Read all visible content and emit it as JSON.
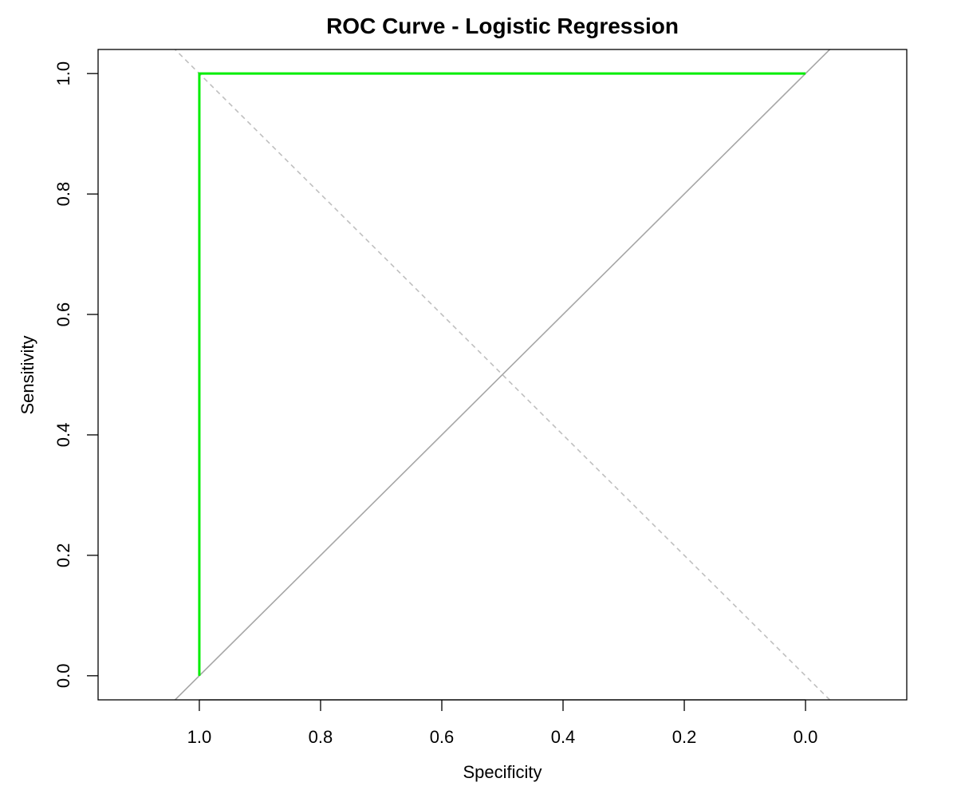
{
  "chart_data": {
    "type": "line",
    "title": "ROC Curve - Logistic Regression",
    "xlabel": "Specificity",
    "ylabel": "Sensitivity",
    "xlim": [
      1.167,
      -0.167
    ],
    "ylim": [
      -0.04,
      1.04
    ],
    "x_reversed": true,
    "x_ticks": [
      1.0,
      0.8,
      0.6,
      0.4,
      0.2,
      0.0
    ],
    "x_tick_labels": [
      "1.0",
      "0.8",
      "0.6",
      "0.4",
      "0.2",
      "0.0"
    ],
    "y_ticks": [
      0.0,
      0.2,
      0.4,
      0.6,
      0.8,
      1.0
    ],
    "y_tick_labels": [
      "0.0",
      "0.2",
      "0.4",
      "0.6",
      "0.8",
      "1.0"
    ],
    "grid": false,
    "legend": "none",
    "series": [
      {
        "color": "#00ee00",
        "points": [
          [
            1.0,
            0.0
          ],
          [
            1.0,
            1.0
          ],
          [
            0.0,
            1.0
          ]
        ]
      }
    ],
    "reference_lines": [
      {
        "style": "solid",
        "color": "#a6a6a6",
        "slope": -1,
        "intercept": 1
      },
      {
        "style": "dashed",
        "color": "#bfbfbf",
        "slope": 1,
        "intercept": 0
      }
    ]
  }
}
